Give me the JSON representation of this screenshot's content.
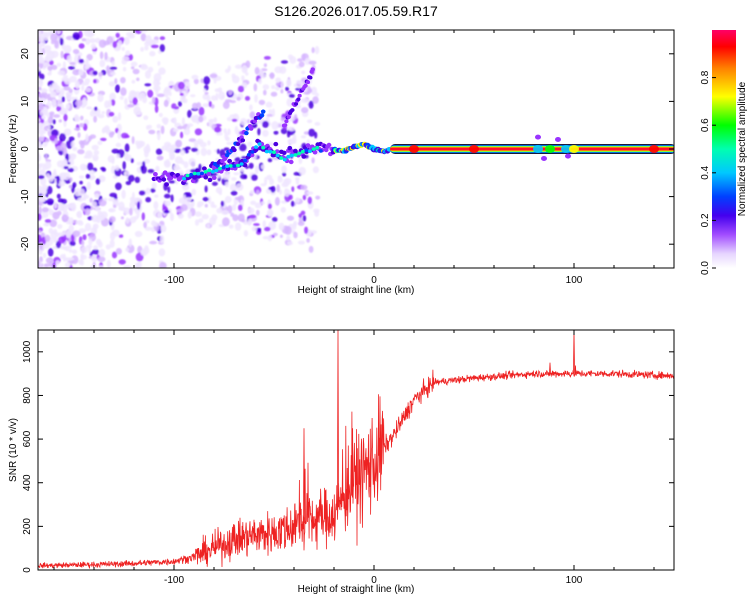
{
  "title": "S126.2026.017.05.59.R17",
  "chart_data": [
    {
      "type": "heatmap",
      "name": "Spectrogram",
      "xlabel": "Height of straight line (km)",
      "ylabel": "Frequency (Hz)",
      "xlim": [
        -168,
        150
      ],
      "ylim": [
        -25,
        25
      ],
      "xticks": [
        -100,
        0,
        100
      ],
      "yticks": [
        -20,
        -10,
        0,
        10,
        20
      ],
      "colorbar": {
        "label": "Normalized spectral amplitude",
        "range": [
          0,
          1
        ],
        "ticks": [
          0.0,
          0.2,
          0.4,
          0.6,
          0.8
        ],
        "colormap": [
          "#f0e6ff",
          "#d7b7ff",
          "#9933ff",
          "#4b00e0",
          "#0044ff",
          "#00c8ff",
          "#00ffb0",
          "#00ff00",
          "#ffff00",
          "#ff8000",
          "#ff0000",
          "#ff0066"
        ]
      },
      "ridge": {
        "x": [
          -105,
          -95,
          -85,
          -75,
          -65,
          -58,
          -50,
          -45,
          -38,
          -30,
          -22,
          -15,
          -10,
          -5,
          0,
          5,
          10,
          20,
          50,
          80,
          100,
          150
        ],
        "freq": [
          -6,
          -6,
          -5,
          -4,
          -3,
          1,
          -1,
          -2,
          -1,
          0,
          0,
          -0.5,
          0.5,
          1,
          0,
          -0.5,
          0,
          0,
          0,
          0,
          0,
          0
        ]
      },
      "branch": {
        "x": [
          -80,
          -75,
          -70,
          -65,
          -60,
          -55
        ],
        "freq": [
          -4,
          -2,
          0,
          3,
          6,
          8
        ]
      },
      "upper_arm": {
        "x": [
          -45,
          -40,
          -35,
          -30
        ],
        "freq": [
          5,
          9,
          13,
          17
        ]
      }
    },
    {
      "type": "line",
      "name": "SNR",
      "xlabel": "Height of straight line (km)",
      "ylabel": "SNR (10 * v/v)",
      "xlim": [
        -168,
        150
      ],
      "ylim": [
        0,
        1100
      ],
      "xticks": [
        -100,
        0,
        100
      ],
      "yticks": [
        0,
        200,
        400,
        600,
        800,
        1000
      ],
      "color": "#ee2222",
      "envelope": {
        "x": [
          -168,
          -140,
          -120,
          -100,
          -90,
          -80,
          -70,
          -60,
          -50,
          -40,
          -30,
          -20,
          -15,
          -10,
          -5,
          0,
          10,
          20,
          30,
          50,
          80,
          100,
          120,
          150
        ],
        "snr": [
          20,
          25,
          30,
          40,
          60,
          100,
          140,
          160,
          170,
          200,
          230,
          260,
          330,
          400,
          450,
          500,
          620,
          780,
          860,
          880,
          900,
          900,
          900,
          890
        ]
      },
      "spikes": [
        {
          "x": -35,
          "snr": 650
        },
        {
          "x": -18,
          "snr": 1100
        },
        {
          "x": 88,
          "snr": 950
        },
        {
          "x": 100,
          "snr": 1100
        }
      ]
    }
  ]
}
